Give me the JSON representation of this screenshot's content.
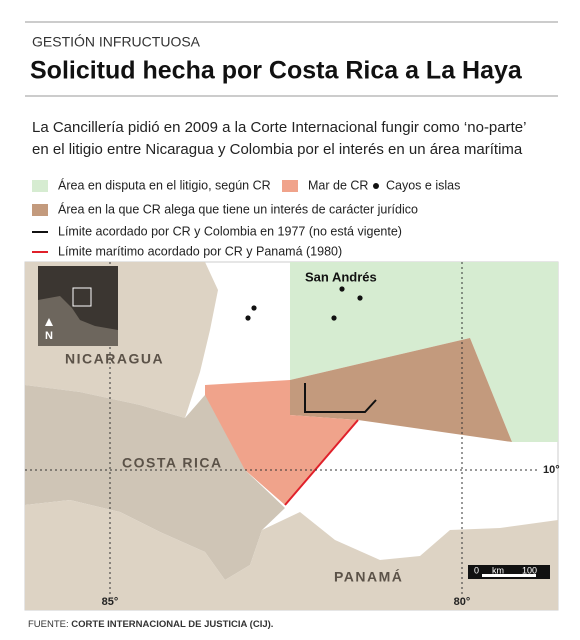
{
  "header": {
    "kicker": "GESTIÓN INFRUCTUOSA",
    "title": "Solicitud hecha por Costa Rica a La Haya"
  },
  "intro": [
    "La Cancillería pidió en 2009 a la Corte Internacional fungir como ‘no-parte’",
    "en el litigio entre Nicaragua y Colombia por el interés en un área marítima"
  ],
  "legend": [
    {
      "label": "Área en disputa en el litigio, según CR",
      "color": "#d6ecd1"
    },
    {
      "label": "Mar de CR",
      "color": "#f0a38b"
    },
    {
      "label": "Cayos e islas",
      "color": "#111111"
    },
    {
      "label": "Área en la que CR alega que tiene un interés de carácter jurídico",
      "color": "#c39a7d"
    },
    {
      "label": "Límite acordado por CR y Colombia en 1977 (no está vigente)",
      "color": "#111111"
    },
    {
      "label": "Límite marítimo acordado por CR y Panamá (1980)",
      "color": "#e0202a"
    }
  ],
  "map": {
    "places": [
      "San Andrés",
      "NICARAGUA",
      "COSTA RICA",
      "PANAMÁ"
    ],
    "latitude": "10°",
    "longitudes": [
      "85°",
      "80°"
    ],
    "north": "N",
    "scale": [
      "0",
      "km",
      "100"
    ]
  },
  "source": {
    "prefix": "FUENTE:",
    "name": "CORTE INTERNACIONAL DE JUSTICIA (CIJ)."
  }
}
